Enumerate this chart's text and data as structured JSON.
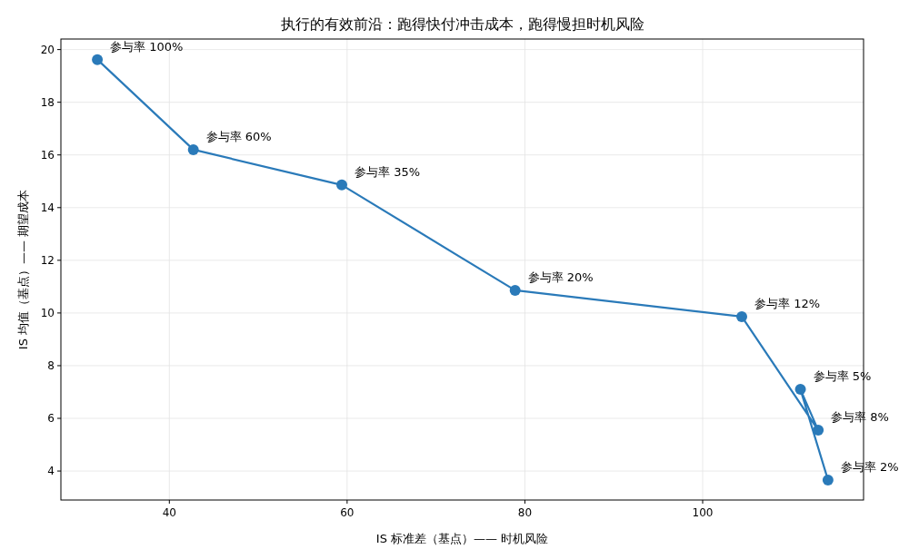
{
  "chart_data": {
    "type": "line",
    "title": "执行的有效前沿：跑得快付冲击成本，跑得慢担时机风险",
    "xlabel": "IS 标准差（基点）—— 时机风险",
    "ylabel": "IS 均值（基点）—— 期望成本",
    "x": [
      31.9,
      42.7,
      59.4,
      78.9,
      104.4,
      113.0,
      111.0,
      114.1
    ],
    "series": [
      {
        "color": "#2a7ab9",
        "values": [
          19.62,
          16.2,
          14.86,
          10.86,
          9.86,
          5.55,
          7.1,
          3.66
        ]
      }
    ],
    "annotations": [
      {
        "text": "参与率 100%",
        "x": 31.9,
        "y": 19.62
      },
      {
        "text": "参与率 60%",
        "x": 42.7,
        "y": 16.2
      },
      {
        "text": "参与率 35%",
        "x": 59.4,
        "y": 14.86
      },
      {
        "text": "参与率 20%",
        "x": 78.9,
        "y": 10.86
      },
      {
        "text": "参与率 12%",
        "x": 104.4,
        "y": 9.86
      },
      {
        "text": "参与率 8%",
        "x": 113.0,
        "y": 5.55
      },
      {
        "text": "参与率 5%",
        "x": 111.0,
        "y": 7.1
      },
      {
        "text": "参与率 2%",
        "x": 114.1,
        "y": 3.66
      }
    ],
    "xlim": [
      27.8,
      118.1
    ],
    "ylim": [
      2.9,
      20.4
    ],
    "xticks": [
      40,
      60,
      80,
      100
    ],
    "yticks": [
      4,
      6,
      8,
      10,
      12,
      14,
      16,
      18,
      20
    ],
    "grid": true,
    "marker": "circle",
    "line_style": "solid"
  }
}
